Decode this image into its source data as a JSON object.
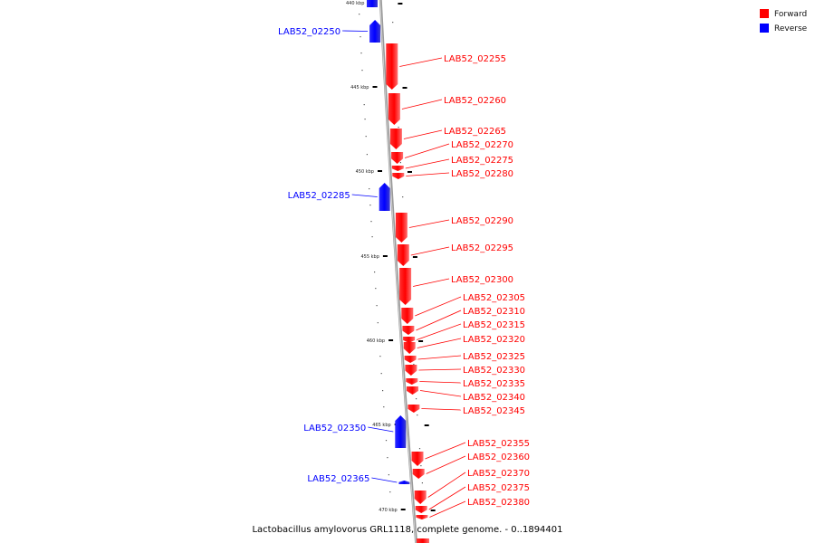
{
  "legend": [
    {
      "label": "Forward",
      "color": "#ff0000"
    },
    {
      "label": "Reverse",
      "color": "#0000ff"
    }
  ],
  "caption": "Lactobacillus amylovorus GRL1118, complete genome. - 0..1894401",
  "strand_colors": {
    "forward": "#ff0000",
    "reverse": "#0000ff",
    "backbone": "#9a9a9a"
  },
  "ticks": [
    "440 kbp",
    "445 kbp",
    "450 kbp",
    "455 kbp",
    "460 kbp",
    "465 kbp",
    "470 kbp"
  ],
  "genes": [
    {
      "name": "LAB52_02250",
      "strand": "reverse"
    },
    {
      "name": "LAB52_02255",
      "strand": "forward"
    },
    {
      "name": "LAB52_02260",
      "strand": "forward"
    },
    {
      "name": "LAB52_02265",
      "strand": "forward"
    },
    {
      "name": "LAB52_02270",
      "strand": "forward"
    },
    {
      "name": "LAB52_02275",
      "strand": "forward"
    },
    {
      "name": "LAB52_02280",
      "strand": "forward"
    },
    {
      "name": "LAB52_02285",
      "strand": "reverse"
    },
    {
      "name": "LAB52_02290",
      "strand": "forward"
    },
    {
      "name": "LAB52_02295",
      "strand": "forward"
    },
    {
      "name": "LAB52_02300",
      "strand": "forward"
    },
    {
      "name": "LAB52_02305",
      "strand": "forward"
    },
    {
      "name": "LAB52_02310",
      "strand": "forward"
    },
    {
      "name": "LAB52_02315",
      "strand": "forward"
    },
    {
      "name": "LAB52_02320",
      "strand": "forward"
    },
    {
      "name": "LAB52_02325",
      "strand": "forward"
    },
    {
      "name": "LAB52_02330",
      "strand": "forward"
    },
    {
      "name": "LAB52_02335",
      "strand": "forward"
    },
    {
      "name": "LAB52_02340",
      "strand": "forward"
    },
    {
      "name": "LAB52_02345",
      "strand": "forward"
    },
    {
      "name": "LAB52_02350",
      "strand": "reverse"
    },
    {
      "name": "LAB52_02355",
      "strand": "forward"
    },
    {
      "name": "LAB52_02360",
      "strand": "forward"
    },
    {
      "name": "LAB52_02365",
      "strand": "reverse"
    },
    {
      "name": "LAB52_02370",
      "strand": "forward"
    },
    {
      "name": "LAB52_02375",
      "strand": "forward"
    },
    {
      "name": "LAB52_02380",
      "strand": "forward"
    }
  ]
}
